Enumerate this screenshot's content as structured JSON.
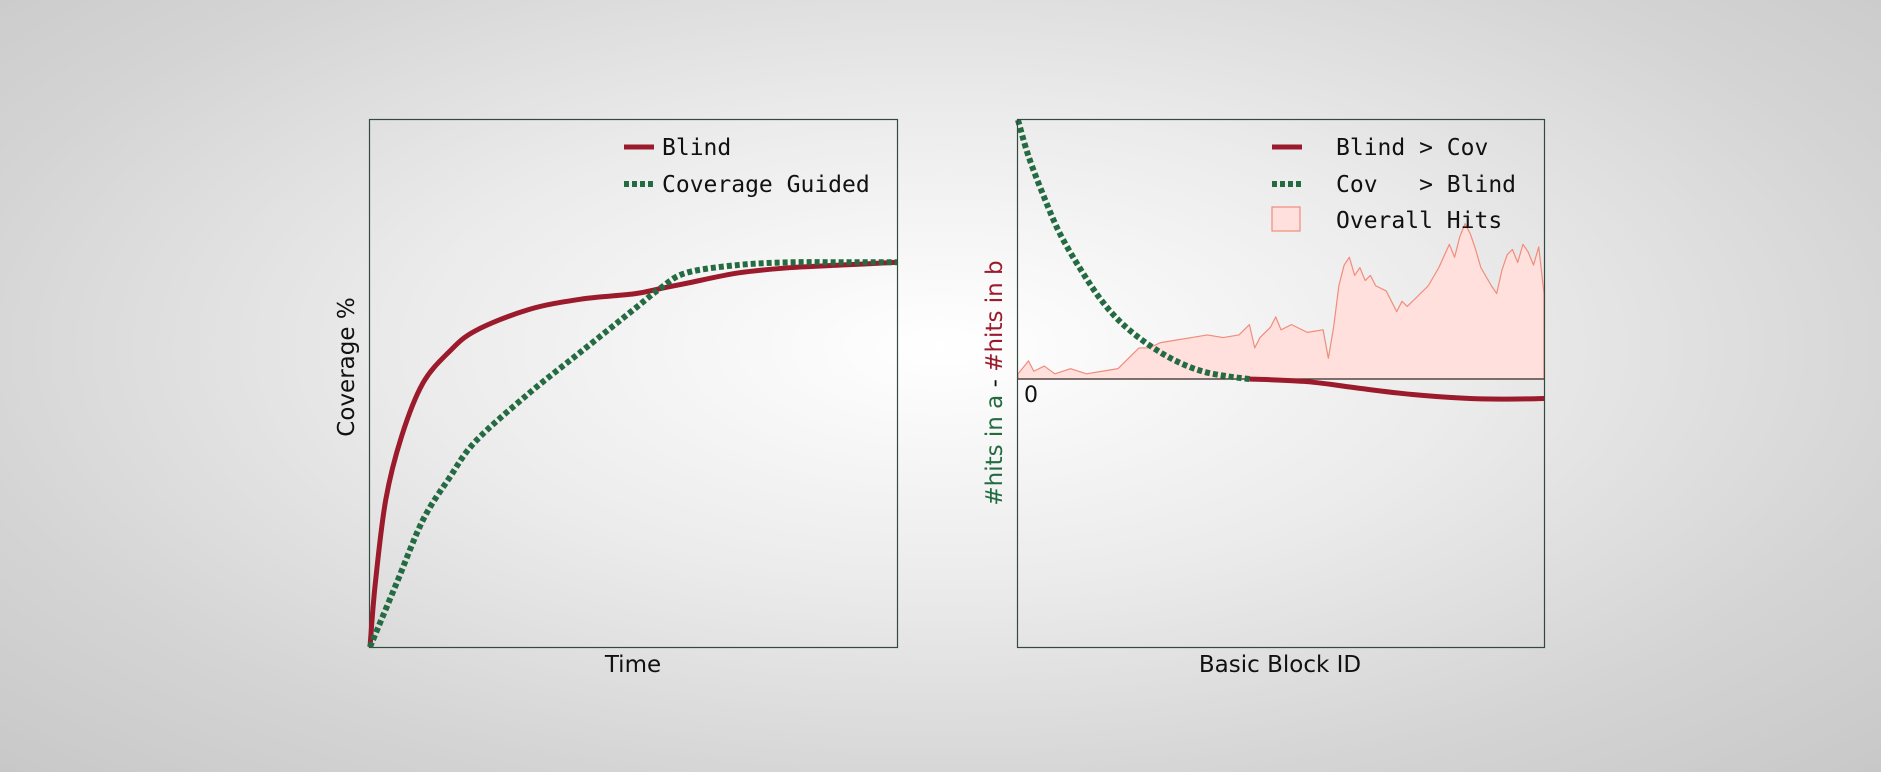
{
  "colors": {
    "blind": "#9b1b2c",
    "coverage": "#246b42",
    "hits_fill": "#ffe0dc",
    "hits_edge": "#f08c7c",
    "frame": "#334a40"
  },
  "chart_data": [
    {
      "type": "line",
      "title": "",
      "xlabel": "Time",
      "ylabel": "Coverage %",
      "xlim": [
        0,
        1
      ],
      "ylim": [
        0,
        1
      ],
      "grid": false,
      "ticks": "none",
      "legend_position": "top-right",
      "series": [
        {
          "name": "Blind",
          "style": "solid",
          "x": [
            0,
            0.01,
            0.03,
            0.06,
            0.1,
            0.15,
            0.2,
            0.3,
            0.4,
            0.5,
            0.55,
            0.6,
            0.7,
            0.8,
            0.9,
            1.0
          ],
          "y": [
            0,
            0.12,
            0.28,
            0.4,
            0.5,
            0.56,
            0.6,
            0.64,
            0.66,
            0.67,
            0.68,
            0.69,
            0.71,
            0.72,
            0.725,
            0.73
          ]
        },
        {
          "name": "Coverage Guided",
          "style": "dotted",
          "x": [
            0,
            0.05,
            0.1,
            0.15,
            0.2,
            0.3,
            0.4,
            0.5,
            0.55,
            0.6,
            0.7,
            0.8,
            0.9,
            1.0
          ],
          "y": [
            0,
            0.12,
            0.24,
            0.32,
            0.39,
            0.48,
            0.56,
            0.64,
            0.68,
            0.71,
            0.725,
            0.73,
            0.73,
            0.73
          ]
        }
      ]
    },
    {
      "type": "area",
      "title": "",
      "xlabel": "Basic Block ID",
      "ylabel_parts": [
        "#hits in a",
        " - ",
        "#hits in b"
      ],
      "zero_label": "0",
      "xlim": [
        0,
        1
      ],
      "ylim": [
        -1,
        1
      ],
      "grid": false,
      "legend_position": "top-right",
      "series": [
        {
          "name": "Blind > Cov",
          "style": "solid",
          "x": [
            0.44,
            0.55,
            0.65,
            0.75,
            0.85,
            0.92,
            1.0
          ],
          "y": [
            0,
            -0.01,
            -0.035,
            -0.058,
            -0.072,
            -0.075,
            -0.073
          ]
        },
        {
          "name": "Cov   > Blind",
          "style": "dotted",
          "x": [
            0,
            0.02,
            0.05,
            0.08,
            0.12,
            0.16,
            0.2,
            0.25,
            0.3,
            0.35,
            0.4,
            0.44
          ],
          "y": [
            1.0,
            0.86,
            0.7,
            0.56,
            0.42,
            0.3,
            0.21,
            0.13,
            0.07,
            0.03,
            0.01,
            0
          ]
        },
        {
          "name": "Overall Hits",
          "style": "fill",
          "x": [
            0,
            0.02,
            0.03,
            0.05,
            0.07,
            0.1,
            0.13,
            0.16,
            0.19,
            0.21,
            0.23,
            0.25,
            0.27,
            0.3,
            0.33,
            0.36,
            0.39,
            0.42,
            0.44,
            0.45,
            0.46,
            0.48,
            0.49,
            0.5,
            0.52,
            0.55,
            0.58,
            0.59,
            0.6,
            0.61,
            0.62,
            0.63,
            0.64,
            0.65,
            0.66,
            0.67,
            0.68,
            0.7,
            0.72,
            0.73,
            0.74,
            0.76,
            0.78,
            0.8,
            0.82,
            0.83,
            0.84,
            0.85,
            0.86,
            0.87,
            0.88,
            0.9,
            0.91,
            0.92,
            0.93,
            0.94,
            0.95,
            0.96,
            0.97,
            0.98,
            0.99,
            1.0
          ],
          "y": [
            0.02,
            0.07,
            0.03,
            0.05,
            0.02,
            0.04,
            0.02,
            0.03,
            0.04,
            0.08,
            0.12,
            0.12,
            0.14,
            0.15,
            0.16,
            0.17,
            0.16,
            0.17,
            0.21,
            0.12,
            0.16,
            0.2,
            0.24,
            0.19,
            0.21,
            0.18,
            0.19,
            0.08,
            0.2,
            0.36,
            0.44,
            0.47,
            0.4,
            0.43,
            0.38,
            0.4,
            0.36,
            0.34,
            0.26,
            0.3,
            0.28,
            0.32,
            0.36,
            0.43,
            0.52,
            0.47,
            0.55,
            0.6,
            0.56,
            0.5,
            0.43,
            0.36,
            0.33,
            0.42,
            0.48,
            0.5,
            0.45,
            0.52,
            0.49,
            0.44,
            0.51,
            0.33
          ]
        }
      ]
    }
  ]
}
